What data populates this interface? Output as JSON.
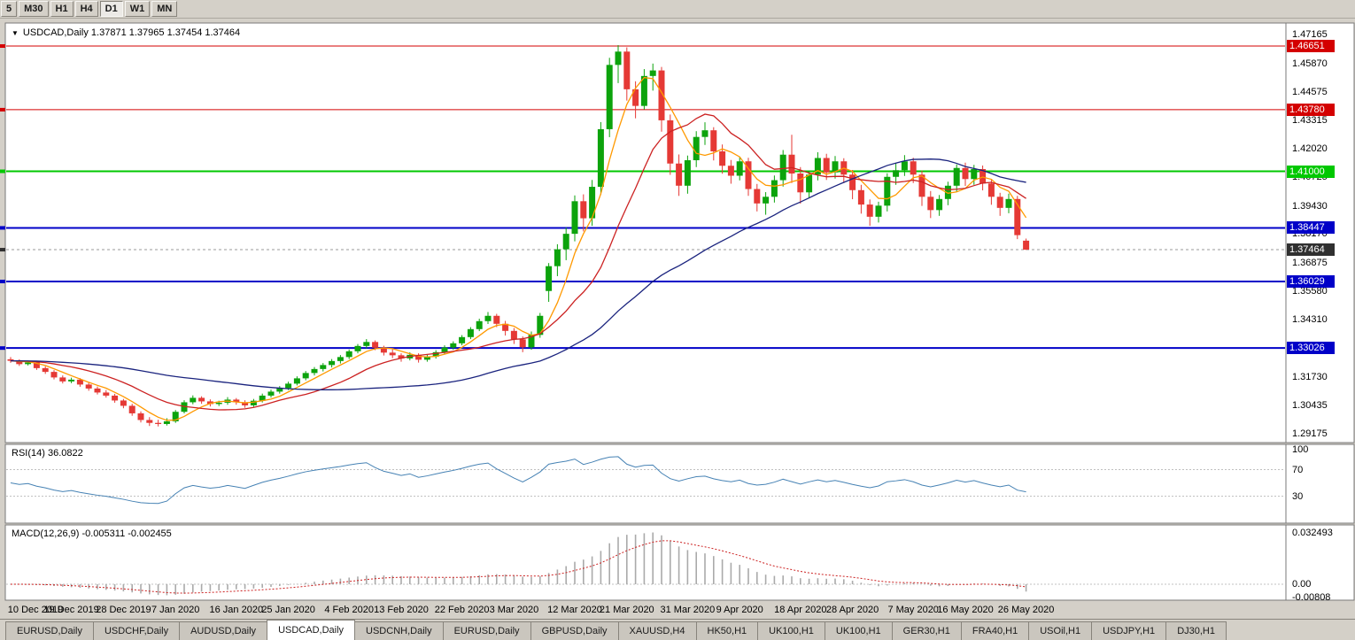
{
  "toolbar": {
    "timeframes": [
      "5",
      "M30",
      "H1",
      "H4",
      "D1",
      "W1",
      "MN"
    ],
    "active": "D1"
  },
  "chart_header": {
    "collapse_icon": "▼",
    "title": "USDCAD,Daily 1.37871 1.37965 1.37454 1.37464"
  },
  "chart_data": {
    "type": "candlestick",
    "symbol": "USDCAD",
    "timeframe": "Daily",
    "ohlc_header": {
      "open": "1.37871",
      "high": "1.37965",
      "low": "1.37454",
      "close": "1.37464"
    },
    "colors": {
      "up": "#0CA30C",
      "down": "#E53935"
    },
    "y_axis": {
      "min": 1.29,
      "max": 1.4745,
      "labels": [
        "1.47165",
        "1.45870",
        "1.44575",
        "1.43315",
        "1.42020",
        "1.40725",
        "1.39430",
        "1.38170",
        "1.36875",
        "1.35580",
        "1.34310",
        "1.33015",
        "1.31730",
        "1.30435",
        "1.29175"
      ]
    },
    "x_axis": {
      "labels": [
        {
          "text": "10 Dec 2019",
          "index": 0
        },
        {
          "text": "19 Dec 2019",
          "index": 7
        },
        {
          "text": "28 Dec 2019",
          "index": 13
        },
        {
          "text": "7 Jan 2020",
          "index": 19
        },
        {
          "text": "16 Jan 2020",
          "index": 26
        },
        {
          "text": "25 Jan 2020",
          "index": 32
        },
        {
          "text": "4 Feb 2020",
          "index": 39
        },
        {
          "text": "13 Feb 2020",
          "index": 45
        },
        {
          "text": "22 Feb 2020",
          "index": 52
        },
        {
          "text": "3 Mar 2020",
          "index": 58
        },
        {
          "text": "12 Mar 2020",
          "index": 65
        },
        {
          "text": "21 Mar 2020",
          "index": 71
        },
        {
          "text": "31 Mar 2020",
          "index": 78
        },
        {
          "text": "9 Apr 2020",
          "index": 84
        },
        {
          "text": "18 Apr 2020",
          "index": 91
        },
        {
          "text": "28 Apr 2020",
          "index": 97
        },
        {
          "text": "7 May 2020",
          "index": 104
        },
        {
          "text": "16 May 2020",
          "index": 110
        },
        {
          "text": "26 May 2020",
          "index": 117
        }
      ]
    },
    "hlines": [
      {
        "price": 1.46651,
        "label": "1.46651",
        "color": "#D40000",
        "width": 1
      },
      {
        "price": 1.4378,
        "label": "1.43780",
        "color": "#D40000",
        "width": 1
      },
      {
        "price": 1.41,
        "label": "1.41000",
        "color": "#00C800",
        "width": 2
      },
      {
        "price": 1.38447,
        "label": "1.38447",
        "color": "#0000C8",
        "width": 2
      },
      {
        "price": 1.36029,
        "label": "1.36029",
        "color": "#0000C8",
        "width": 2
      },
      {
        "price": 1.33026,
        "label": "1.33026",
        "color": "#0000C8",
        "width": 2
      }
    ],
    "current_price": {
      "value": 1.37464,
      "label": "1.37464",
      "badge_color": "#303030",
      "line_color": "#999999"
    },
    "moving_averages": [
      {
        "name": "fast",
        "period": 5,
        "color": "#FF9900"
      },
      {
        "name": "mid",
        "period": 13,
        "color": "#CC2222"
      },
      {
        "name": "slow",
        "period": 40,
        "color": "#1A237E"
      }
    ],
    "rsi": {
      "label": "RSI(14) 36.0822",
      "period": 14,
      "value": "36.0822",
      "levels": [
        70,
        30
      ],
      "axis_labels": [
        "100",
        "70",
        "30"
      ],
      "color": "#4682B4"
    },
    "macd": {
      "label": "MACD(12,26,9) -0.005311 -0.002455",
      "fast": 12,
      "slow": 26,
      "signal": 9,
      "values": [
        "-0.005311",
        "-0.002455"
      ],
      "axis_labels": [
        "0.032493",
        "0.00",
        "-0.00808"
      ],
      "hist_color": "#AAAAAA",
      "signal_color": "#CC2222"
    },
    "candles": [
      [
        1.3252,
        1.3262,
        1.3236,
        1.3245
      ],
      [
        1.3245,
        1.3252,
        1.3222,
        1.323
      ],
      [
        1.323,
        1.3246,
        1.3224,
        1.3238
      ],
      [
        1.3238,
        1.3243,
        1.3204,
        1.3212
      ],
      [
        1.3212,
        1.322,
        1.3186,
        1.3195
      ],
      [
        1.3195,
        1.3203,
        1.3161,
        1.317
      ],
      [
        1.317,
        1.3179,
        1.3143,
        1.3152
      ],
      [
        1.3152,
        1.3169,
        1.3144,
        1.316
      ],
      [
        1.316,
        1.3167,
        1.3128,
        1.3138
      ],
      [
        1.3138,
        1.3147,
        1.311,
        1.312
      ],
      [
        1.312,
        1.3129,
        1.3093,
        1.3102
      ],
      [
        1.3102,
        1.3113,
        1.3079,
        1.3088
      ],
      [
        1.3088,
        1.3096,
        1.3056,
        1.3066
      ],
      [
        1.3066,
        1.3073,
        1.3031,
        1.3042
      ],
      [
        1.3042,
        1.3051,
        1.2997,
        1.3008
      ],
      [
        1.3008,
        1.3017,
        1.2967,
        1.2978
      ],
      [
        1.2978,
        1.2991,
        1.2951,
        1.2965
      ],
      [
        1.2965,
        1.2979,
        1.2949,
        1.296
      ],
      [
        1.296,
        1.2986,
        1.2953,
        1.2972
      ],
      [
        1.2972,
        1.3023,
        1.2965,
        1.3015
      ],
      [
        1.3015,
        1.3067,
        1.3008,
        1.3058
      ],
      [
        1.3058,
        1.3089,
        1.3049,
        1.3078
      ],
      [
        1.3078,
        1.3085,
        1.3051,
        1.3062
      ],
      [
        1.3062,
        1.3071,
        1.3039,
        1.305
      ],
      [
        1.305,
        1.3065,
        1.3041,
        1.3056
      ],
      [
        1.3056,
        1.3081,
        1.3047,
        1.307
      ],
      [
        1.307,
        1.3077,
        1.3047,
        1.3058
      ],
      [
        1.3058,
        1.3067,
        1.3033,
        1.3044
      ],
      [
        1.3044,
        1.3073,
        1.3037,
        1.3065
      ],
      [
        1.3065,
        1.3097,
        1.3057,
        1.3088
      ],
      [
        1.3088,
        1.3115,
        1.3079,
        1.3106
      ],
      [
        1.3106,
        1.3131,
        1.3097,
        1.3122
      ],
      [
        1.3122,
        1.3151,
        1.3113,
        1.3142
      ],
      [
        1.3142,
        1.3175,
        1.3134,
        1.3166
      ],
      [
        1.3166,
        1.3199,
        1.3157,
        1.319
      ],
      [
        1.319,
        1.3217,
        1.3179,
        1.3208
      ],
      [
        1.3208,
        1.3235,
        1.3197,
        1.3226
      ],
      [
        1.3226,
        1.3253,
        1.3215,
        1.3244
      ],
      [
        1.3244,
        1.3271,
        1.3233,
        1.3262
      ],
      [
        1.3262,
        1.3296,
        1.3253,
        1.3288
      ],
      [
        1.3288,
        1.3321,
        1.3279,
        1.3312
      ],
      [
        1.3312,
        1.3343,
        1.3301,
        1.333
      ],
      [
        1.333,
        1.3337,
        1.3293,
        1.3304
      ],
      [
        1.3304,
        1.3313,
        1.3269,
        1.3282
      ],
      [
        1.3282,
        1.3297,
        1.3257,
        1.327
      ],
      [
        1.327,
        1.3279,
        1.3241,
        1.3256
      ],
      [
        1.3256,
        1.3283,
        1.3247,
        1.3272
      ],
      [
        1.3272,
        1.3279,
        1.3237,
        1.325
      ],
      [
        1.325,
        1.3275,
        1.3241,
        1.3264
      ],
      [
        1.3264,
        1.3293,
        1.3255,
        1.3284
      ],
      [
        1.3284,
        1.3315,
        1.3275,
        1.3305
      ],
      [
        1.3305,
        1.3333,
        1.3295,
        1.3324
      ],
      [
        1.3324,
        1.3361,
        1.3315,
        1.3352
      ],
      [
        1.3352,
        1.3397,
        1.3343,
        1.3388
      ],
      [
        1.3388,
        1.3435,
        1.3379,
        1.3424
      ],
      [
        1.3424,
        1.3465,
        1.3411,
        1.3448
      ],
      [
        1.3448,
        1.3457,
        1.3397,
        1.3412
      ],
      [
        1.3412,
        1.3425,
        1.3359,
        1.338
      ],
      [
        1.338,
        1.3393,
        1.3321,
        1.3342
      ],
      [
        1.3342,
        1.3355,
        1.3284,
        1.3306
      ],
      [
        1.3306,
        1.3377,
        1.3295,
        1.3362
      ],
      [
        1.3362,
        1.3461,
        1.3349,
        1.3448
      ],
      [
        1.356,
        1.3686,
        1.3511,
        1.3672
      ],
      [
        1.3672,
        1.3771,
        1.3627,
        1.3748
      ],
      [
        1.3748,
        1.3846,
        1.3699,
        1.3818
      ],
      [
        1.3818,
        1.3991,
        1.3784,
        1.3965
      ],
      [
        1.3965,
        1.3996,
        1.3829,
        1.3888
      ],
      [
        1.3888,
        1.4061,
        1.3854,
        1.403
      ],
      [
        1.403,
        1.4322,
        1.3994,
        1.429
      ],
      [
        1.429,
        1.4612,
        1.4254,
        1.458
      ],
      [
        1.458,
        1.4669,
        1.4498,
        1.464
      ],
      [
        1.464,
        1.4659,
        1.4419,
        1.447
      ],
      [
        1.447,
        1.4506,
        1.4339,
        1.4395
      ],
      [
        1.4395,
        1.4561,
        1.4379,
        1.453
      ],
      [
        1.453,
        1.4586,
        1.4464,
        1.4555
      ],
      [
        1.4555,
        1.4571,
        1.4279,
        1.433
      ],
      [
        1.433,
        1.4356,
        1.4084,
        1.4135
      ],
      [
        1.4135,
        1.4176,
        1.3989,
        1.4035
      ],
      [
        1.4035,
        1.4171,
        1.3999,
        1.415
      ],
      [
        1.415,
        1.4281,
        1.4119,
        1.4255
      ],
      [
        1.4255,
        1.4321,
        1.4219,
        1.4285
      ],
      [
        1.4285,
        1.4299,
        1.4149,
        1.419
      ],
      [
        1.419,
        1.4221,
        1.4089,
        1.4125
      ],
      [
        1.4125,
        1.4151,
        1.4044,
        1.408
      ],
      [
        1.408,
        1.4163,
        1.4059,
        1.4145
      ],
      [
        1.4145,
        1.4161,
        1.3989,
        1.402
      ],
      [
        1.402,
        1.4043,
        1.3919,
        1.3955
      ],
      [
        1.3955,
        1.4006,
        1.3904,
        1.3985
      ],
      [
        1.3985,
        1.4081,
        1.3959,
        1.406
      ],
      [
        1.406,
        1.4196,
        1.4031,
        1.4175
      ],
      [
        1.4175,
        1.4265,
        1.4047,
        1.409
      ],
      [
        1.409,
        1.4119,
        1.3954,
        1.4005
      ],
      [
        1.4005,
        1.4103,
        1.3981,
        1.4085
      ],
      [
        1.4085,
        1.4186,
        1.4059,
        1.416
      ],
      [
        1.416,
        1.4179,
        1.4061,
        1.4095
      ],
      [
        1.4095,
        1.4169,
        1.4067,
        1.4145
      ],
      [
        1.4145,
        1.4159,
        1.4047,
        1.4085
      ],
      [
        1.4085,
        1.4106,
        1.3974,
        1.4015
      ],
      [
        1.4015,
        1.4039,
        1.3909,
        1.395
      ],
      [
        1.395,
        1.3973,
        1.3854,
        1.3895
      ],
      [
        1.3895,
        1.3963,
        1.3869,
        1.3945
      ],
      [
        1.3945,
        1.4091,
        1.3919,
        1.4075
      ],
      [
        1.4075,
        1.4136,
        1.4039,
        1.4105
      ],
      [
        1.4105,
        1.4173,
        1.4079,
        1.4145
      ],
      [
        1.4145,
        1.4161,
        1.4047,
        1.4085
      ],
      [
        1.4085,
        1.4103,
        1.3944,
        1.3985
      ],
      [
        1.3985,
        1.4011,
        1.3889,
        1.3925
      ],
      [
        1.3925,
        1.3993,
        1.3899,
        1.3975
      ],
      [
        1.3975,
        1.4053,
        1.3947,
        1.4035
      ],
      [
        1.4035,
        1.4131,
        1.4007,
        1.4115
      ],
      [
        1.4115,
        1.4139,
        1.4034,
        1.4065
      ],
      [
        1.4065,
        1.4129,
        1.4039,
        1.411
      ],
      [
        1.411,
        1.4126,
        1.4014,
        1.4045
      ],
      [
        1.4045,
        1.4063,
        1.3949,
        1.3985
      ],
      [
        1.3985,
        1.4003,
        1.3899,
        1.3935
      ],
      [
        1.3935,
        1.3999,
        1.3911,
        1.3975
      ],
      [
        1.3975,
        1.3989,
        1.3794,
        1.3812
      ],
      [
        1.37871,
        1.37965,
        1.37454,
        1.37464
      ]
    ]
  },
  "tabs": {
    "items": [
      "EURUSD,Daily",
      "USDCHF,Daily",
      "AUDUSD,Daily",
      "USDCAD,Daily",
      "USDCNH,Daily",
      "EURUSD,Daily",
      "GBPUSD,Daily",
      "XAUUSD,H4",
      "HK50,H1",
      "UK100,H1",
      "UK100,H1",
      "GER30,H1",
      "FRA40,H1",
      "USOil,H1",
      "USDJPY,H1",
      "DJ30,H1"
    ],
    "active_index": 3
  }
}
